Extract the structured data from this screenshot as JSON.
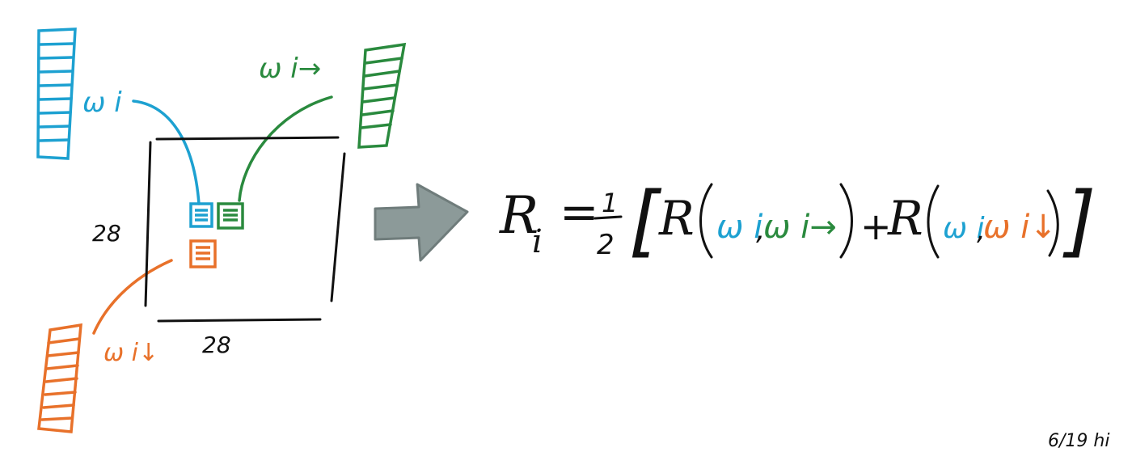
{
  "colors": {
    "ink": "#111111",
    "blue": "#1da1d1",
    "green": "#2a8a3e",
    "orange": "#e8712a",
    "gray": "#8c9a99"
  },
  "diagram": {
    "grid_width_label": "28",
    "grid_height_label": "28",
    "vectors": {
      "center": {
        "label": "ω i",
        "color_key": "blue"
      },
      "right": {
        "label": "ω i→",
        "color_key": "green"
      },
      "down": {
        "label": "ω i↓",
        "color_key": "orange"
      }
    },
    "arrow_icon": "right-arrow-icon"
  },
  "equation": {
    "lhs": "R",
    "lhs_subscript": "i",
    "equals": "=",
    "fraction_numerator": "1",
    "fraction_denominator": "2",
    "open_bracket": "[",
    "close_bracket": "]",
    "term1_func": "R",
    "term1_arg1": "ω i",
    "term1_sep": ",",
    "term1_arg2": "ω i→",
    "plus": "+",
    "term2_func": "R",
    "term2_arg1": "ω i",
    "term2_sep": ",",
    "term2_arg2": "ω i↓"
  },
  "signature": "6/19 hi"
}
